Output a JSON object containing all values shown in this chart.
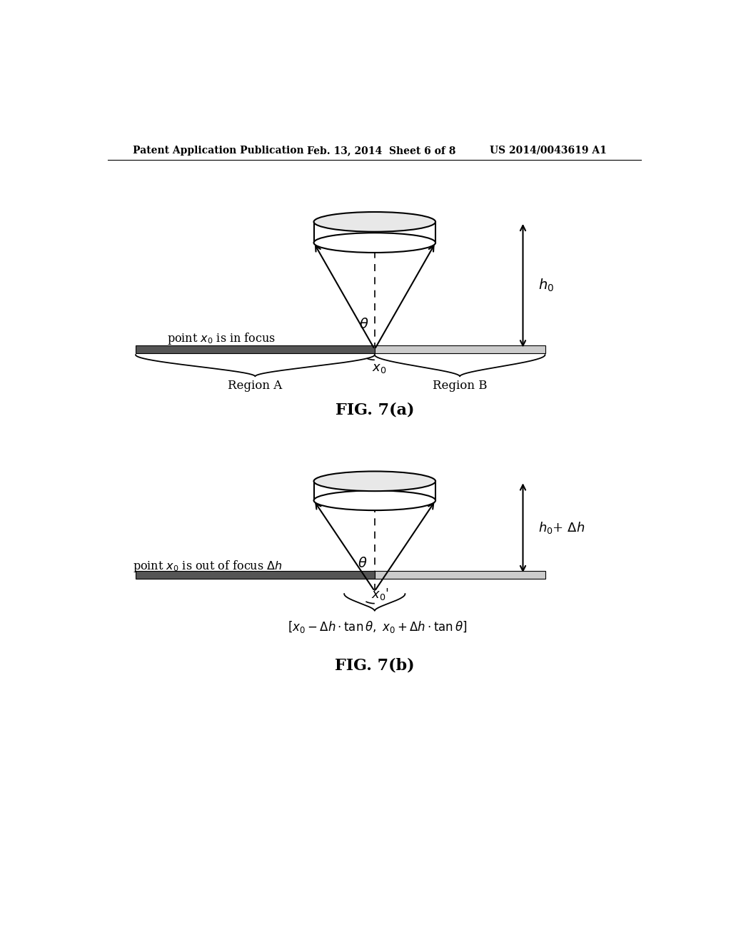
{
  "header_left": "Patent Application Publication",
  "header_center": "Feb. 13, 2014  Sheet 6 of 8",
  "header_right": "US 2014/0043619 A1",
  "background_color": "#ffffff",
  "line_color": "#000000",
  "surface_dark_color": "#555555",
  "surface_light_color": "#cccccc",
  "fig_a_title": "FIG. 7(a)",
  "fig_b_title": "FIG. 7(b)"
}
